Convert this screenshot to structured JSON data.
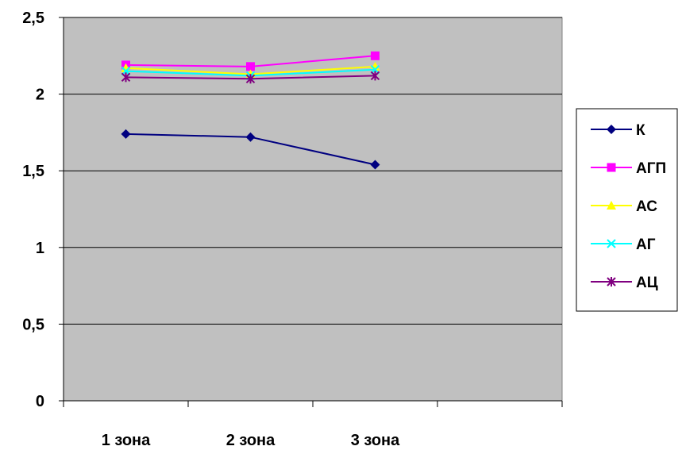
{
  "chart_data": {
    "type": "line",
    "categories": [
      "1 зона",
      "2 зона",
      "3 зона"
    ],
    "n_slots": 4,
    "ylim": [
      0,
      2.5
    ],
    "ytick_values": [
      0,
      0.5,
      1,
      1.5,
      2,
      2.5
    ],
    "ytick_labels": [
      "0",
      "0,5",
      "1",
      "1,5",
      "2",
      "2,5"
    ],
    "grid": true,
    "legend_position": "right",
    "plot_background": "#c0c0c0",
    "series": [
      {
        "name": "К",
        "values": [
          1.74,
          1.72,
          1.54
        ],
        "color": "#000080",
        "marker": "diamond"
      },
      {
        "name": "АГП",
        "values": [
          2.19,
          2.18,
          2.25
        ],
        "color": "#ff00ff",
        "marker": "square"
      },
      {
        "name": "АС",
        "values": [
          2.17,
          2.13,
          2.18
        ],
        "color": "#ffff00",
        "marker": "triangle"
      },
      {
        "name": "АГ",
        "values": [
          2.15,
          2.12,
          2.16
        ],
        "color": "#00ffff",
        "marker": "x"
      },
      {
        "name": "АЦ",
        "values": [
          2.11,
          2.1,
          2.12
        ],
        "color": "#800080",
        "marker": "star"
      }
    ]
  }
}
